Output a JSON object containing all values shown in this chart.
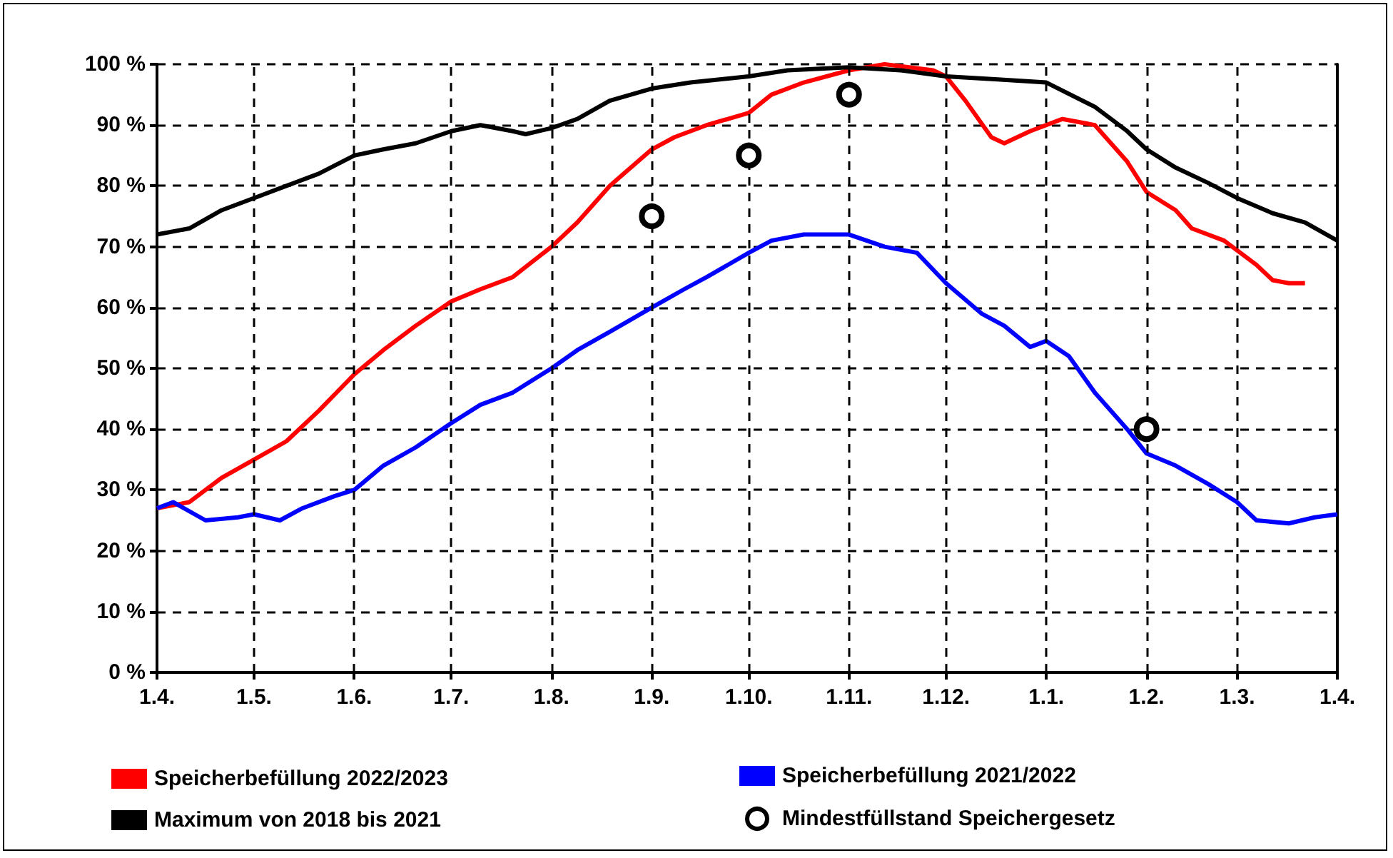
{
  "chart_data": {
    "type": "line",
    "xlim": [
      "2022-04-01",
      "2023-04-01"
    ],
    "xticks": [
      {
        "value": "2022-04-01",
        "label": "1.4."
      },
      {
        "value": "2022-05-01",
        "label": "1.5."
      },
      {
        "value": "2022-06-01",
        "label": "1.6."
      },
      {
        "value": "2022-07-01",
        "label": "1.7."
      },
      {
        "value": "2022-08-01",
        "label": "1.8."
      },
      {
        "value": "2022-09-01",
        "label": "1.9."
      },
      {
        "value": "2022-10-01",
        "label": "1.10."
      },
      {
        "value": "2022-11-01",
        "label": "1.11."
      },
      {
        "value": "2022-12-01",
        "label": "1.12."
      },
      {
        "value": "2023-01-01",
        "label": "1.1."
      },
      {
        "value": "2023-02-01",
        "label": "1.2."
      },
      {
        "value": "2023-03-01",
        "label": "1.3."
      },
      {
        "value": "2023-04-01",
        "label": "1.4."
      }
    ],
    "ylim": [
      0,
      100
    ],
    "yticks": [
      {
        "value": 0,
        "label": "0 %"
      },
      {
        "value": 10,
        "label": "10 %"
      },
      {
        "value": 20,
        "label": "20 %"
      },
      {
        "value": 30,
        "label": "30 %"
      },
      {
        "value": 40,
        "label": "40 %"
      },
      {
        "value": 50,
        "label": "50 %"
      },
      {
        "value": 60,
        "label": "60 %"
      },
      {
        "value": 70,
        "label": "70 %"
      },
      {
        "value": 80,
        "label": "80 %"
      },
      {
        "value": 90,
        "label": "90 %"
      },
      {
        "value": 100,
        "label": "100 %"
      }
    ],
    "grid": true,
    "legend": "bottom",
    "line_style": "solid",
    "series": [
      {
        "name": "Speicherbefüllung 2022/2023",
        "color": "#ff0000",
        "x": [
          "2022-04-01",
          "2022-04-11",
          "2022-04-21",
          "2022-05-01",
          "2022-05-11",
          "2022-05-21",
          "2022-06-01",
          "2022-06-10",
          "2022-06-20",
          "2022-07-01",
          "2022-07-10",
          "2022-07-20",
          "2022-08-01",
          "2022-08-09",
          "2022-08-19",
          "2022-09-01",
          "2022-09-08",
          "2022-09-18",
          "2022-10-01",
          "2022-10-08",
          "2022-10-18",
          "2022-11-01",
          "2022-11-12",
          "2022-11-27",
          "2022-12-01",
          "2022-12-07",
          "2022-12-15",
          "2022-12-19",
          "2022-12-27",
          "2023-01-06",
          "2023-01-16",
          "2023-01-26",
          "2023-02-01",
          "2023-02-10",
          "2023-02-15",
          "2023-02-25",
          "2023-03-07",
          "2023-03-12",
          "2023-03-17",
          "2023-03-22"
        ],
        "values": [
          27,
          28,
          32,
          35,
          38,
          43,
          49,
          53,
          57,
          61,
          63,
          65,
          70,
          74,
          80,
          86,
          88,
          90,
          92,
          95,
          97,
          99,
          100,
          99,
          98,
          94,
          88,
          87,
          89,
          91,
          90,
          84,
          79,
          76,
          73,
          71,
          67,
          64.5,
          64,
          64
        ]
      },
      {
        "name": "Speicherbefüllung 2021/2022",
        "color": "#0000ff",
        "x": [
          "2022-04-01",
          "2022-04-06",
          "2022-04-16",
          "2022-04-26",
          "2022-05-01",
          "2022-05-09",
          "2022-05-16",
          "2022-05-26",
          "2022-06-01",
          "2022-06-10",
          "2022-06-20",
          "2022-07-01",
          "2022-07-10",
          "2022-07-20",
          "2022-08-01",
          "2022-08-09",
          "2022-08-19",
          "2022-09-01",
          "2022-09-11",
          "2022-09-18",
          "2022-10-01",
          "2022-10-08",
          "2022-10-18",
          "2022-11-01",
          "2022-11-12",
          "2022-11-22",
          "2022-12-01",
          "2022-12-12",
          "2022-12-19",
          "2022-12-27",
          "2023-01-01",
          "2023-01-08",
          "2023-01-16",
          "2023-01-26",
          "2023-02-01",
          "2023-02-10",
          "2023-02-20",
          "2023-03-01",
          "2023-03-07",
          "2023-03-17",
          "2023-03-25",
          "2023-04-01"
        ],
        "values": [
          27,
          28,
          25,
          25.5,
          26,
          25,
          27,
          29,
          30,
          34,
          37,
          41,
          44,
          46,
          50,
          53,
          56,
          60,
          63,
          65,
          69,
          71,
          72,
          72,
          70,
          69,
          64,
          59,
          57,
          53.5,
          54.5,
          52,
          46,
          40,
          36,
          34,
          31,
          28,
          25,
          24.5,
          25.5,
          26
        ]
      },
      {
        "name": "Maximum von 2018 bis 2021",
        "color": "#000000",
        "x": [
          "2022-04-01",
          "2022-04-11",
          "2022-04-21",
          "2022-05-01",
          "2022-05-11",
          "2022-05-21",
          "2022-06-01",
          "2022-06-10",
          "2022-06-20",
          "2022-07-01",
          "2022-07-10",
          "2022-07-20",
          "2022-07-24",
          "2022-08-01",
          "2022-08-09",
          "2022-08-19",
          "2022-09-01",
          "2022-09-13",
          "2022-10-01",
          "2022-10-13",
          "2022-11-01",
          "2022-11-17",
          "2022-12-01",
          "2022-12-17",
          "2023-01-01",
          "2023-01-16",
          "2023-01-26",
          "2023-02-01",
          "2023-02-10",
          "2023-02-20",
          "2023-03-01",
          "2023-03-12",
          "2023-03-22",
          "2023-04-01"
        ],
        "values": [
          72,
          73,
          76,
          78,
          80,
          82,
          85,
          86,
          87,
          89,
          90,
          89,
          88.5,
          89.5,
          91,
          94,
          96,
          97,
          98,
          99,
          99.5,
          99,
          98,
          97.5,
          97,
          93,
          89,
          86,
          83,
          80.5,
          78,
          75.5,
          74,
          71
        ]
      },
      {
        "name": "Mindestfüllstand Speichergesetz",
        "type": "scatter",
        "marker": "circle",
        "color": "#000000",
        "x": [
          "2022-09-01",
          "2022-10-01",
          "2022-11-01",
          "2023-02-01"
        ],
        "values": [
          75,
          85,
          95,
          40
        ]
      }
    ]
  }
}
